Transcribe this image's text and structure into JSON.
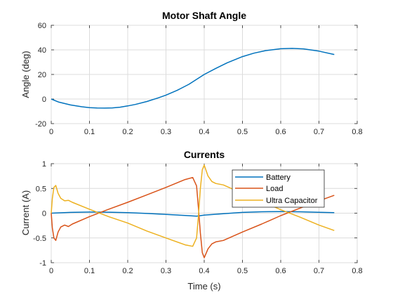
{
  "colors": {
    "battery": "#0072BD",
    "load": "#D95319",
    "ultra": "#EDB120",
    "axis": "#262626",
    "grid": "#dcdcdc"
  },
  "chart_data": [
    {
      "type": "line",
      "title": "Motor Shaft Angle",
      "xlabel": "",
      "ylabel": "Angle (deg)",
      "xlim": [
        0,
        0.8
      ],
      "ylim": [
        -20,
        60
      ],
      "xticks": [
        0,
        0.1,
        0.2,
        0.3,
        0.4,
        0.5,
        0.6,
        0.7,
        0.8
      ],
      "yticks": [
        -20,
        0,
        20,
        40,
        60
      ],
      "xtick_labels": [
        "0",
        "0.1",
        "0.2",
        "0.3",
        "0.4",
        "0.5",
        "0.6",
        "0.7",
        "0.8"
      ],
      "ytick_labels": [
        "-20",
        "0",
        "20",
        "40",
        "60"
      ],
      "grid": true,
      "series": [
        {
          "color": "#0072BD",
          "x": [
            0,
            0.02,
            0.05,
            0.08,
            0.1,
            0.12,
            0.14,
            0.16,
            0.18,
            0.2,
            0.22,
            0.25,
            0.28,
            0.3,
            0.33,
            0.36,
            0.4,
            0.43,
            0.46,
            0.5,
            0.53,
            0.56,
            0.6,
            0.63,
            0.66,
            0.7,
            0.74
          ],
          "y": [
            0,
            -2.5,
            -4.8,
            -6.3,
            -7,
            -7.3,
            -7.4,
            -7.2,
            -6.6,
            -5.6,
            -4.4,
            -2,
            1,
            3.2,
            7.2,
            12,
            20,
            24.9,
            29.5,
            34.5,
            37.3,
            39.4,
            40.9,
            41.2,
            40.8,
            39,
            36.2
          ]
        }
      ]
    },
    {
      "type": "line",
      "title": "Currents",
      "xlabel": "Time (s)",
      "ylabel": "Current (A)",
      "xlim": [
        0,
        0.8
      ],
      "ylim": [
        -1,
        1
      ],
      "xticks": [
        0,
        0.1,
        0.2,
        0.3,
        0.4,
        0.5,
        0.6,
        0.7,
        0.8
      ],
      "yticks": [
        -1,
        -0.5,
        0,
        0.5,
        1
      ],
      "xtick_labels": [
        "0",
        "0.1",
        "0.2",
        "0.3",
        "0.4",
        "0.5",
        "0.6",
        "0.7",
        "0.8"
      ],
      "ytick_labels": [
        "-1",
        "-0.5",
        "0",
        "0.5",
        "1"
      ],
      "grid": true,
      "legend": "top-right",
      "series": [
        {
          "name": "Battery",
          "color": "#0072BD",
          "x": [
            0,
            0.05,
            0.1,
            0.15,
            0.2,
            0.25,
            0.3,
            0.35,
            0.38,
            0.4,
            0.45,
            0.5,
            0.55,
            0.6,
            0.65,
            0.7,
            0.74
          ],
          "y": [
            0,
            0.015,
            0.022,
            0.02,
            0.01,
            -0.005,
            -0.025,
            -0.045,
            -0.06,
            -0.04,
            -0.01,
            0.015,
            0.028,
            0.032,
            0.028,
            0.018,
            0.01
          ]
        },
        {
          "name": "Load",
          "color": "#D95319",
          "x": [
            0,
            0.003,
            0.007,
            0.012,
            0.018,
            0.025,
            0.035,
            0.045,
            0.055,
            0.1,
            0.15,
            0.2,
            0.25,
            0.3,
            0.35,
            0.37,
            0.38,
            0.385,
            0.39,
            0.395,
            0.4,
            0.41,
            0.42,
            0.43,
            0.45,
            0.5,
            0.55,
            0.6,
            0.65,
            0.7,
            0.74
          ],
          "y": [
            0,
            -0.3,
            -0.5,
            -0.55,
            -0.38,
            -0.28,
            -0.24,
            -0.27,
            -0.22,
            -0.07,
            0.08,
            0.22,
            0.37,
            0.52,
            0.68,
            0.72,
            0.55,
            0.1,
            -0.4,
            -0.8,
            -0.9,
            -0.72,
            -0.62,
            -0.58,
            -0.55,
            -0.38,
            -0.22,
            -0.05,
            0.1,
            0.25,
            0.36
          ]
        },
        {
          "name": "Ultra Capacitor",
          "color": "#EDB120",
          "x": [
            0,
            0.003,
            0.007,
            0.012,
            0.018,
            0.025,
            0.035,
            0.045,
            0.055,
            0.1,
            0.15,
            0.2,
            0.25,
            0.3,
            0.35,
            0.37,
            0.38,
            0.385,
            0.39,
            0.395,
            0.4,
            0.41,
            0.42,
            0.43,
            0.45,
            0.5,
            0.55,
            0.6,
            0.65,
            0.7,
            0.74
          ],
          "y": [
            0,
            0.3,
            0.52,
            0.56,
            0.4,
            0.3,
            0.25,
            0.26,
            0.22,
            0.08,
            -0.07,
            -0.2,
            -0.36,
            -0.5,
            -0.64,
            -0.67,
            -0.5,
            -0.05,
            0.5,
            0.88,
            0.97,
            0.75,
            0.64,
            0.6,
            0.57,
            0.4,
            0.24,
            0.07,
            -0.08,
            -0.24,
            -0.35
          ]
        }
      ]
    }
  ]
}
